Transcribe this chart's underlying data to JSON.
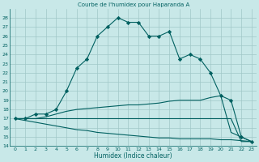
{
  "title": "Courbe de l'humidex pour Haparanda A",
  "xlabel": "Humidex (Indice chaleur)",
  "background_color": "#c8e8e8",
  "grid_color": "#a0c8c8",
  "line_color": "#006060",
  "ylim": [
    14,
    29
  ],
  "xlim": [
    -0.5,
    23.5
  ],
  "yticks": [
    14,
    15,
    16,
    17,
    18,
    19,
    20,
    21,
    22,
    23,
    24,
    25,
    26,
    27,
    28
  ],
  "xticks": [
    0,
    1,
    2,
    3,
    4,
    5,
    6,
    7,
    8,
    9,
    10,
    11,
    12,
    13,
    14,
    15,
    16,
    17,
    18,
    19,
    20,
    21,
    22,
    23
  ],
  "series": [
    {
      "x": [
        0,
        1,
        2,
        3,
        4,
        5,
        6,
        7,
        8,
        9,
        10,
        11,
        12,
        13,
        14,
        15,
        16,
        17,
        18,
        19,
        20,
        21,
        22,
        23
      ],
      "y": [
        17,
        17,
        17.5,
        17.5,
        18,
        20,
        22.5,
        23.5,
        26,
        27,
        28,
        27.5,
        27.5,
        26,
        26,
        26.5,
        23.5,
        24,
        23.5,
        22,
        19.5,
        19,
        15,
        14.5
      ],
      "marker": true
    },
    {
      "x": [
        0,
        1,
        2,
        3,
        4,
        5,
        6,
        7,
        8,
        9,
        10,
        11,
        12,
        13,
        14,
        15,
        16,
        17,
        18,
        19,
        20,
        21,
        22,
        23
      ],
      "y": [
        17,
        17,
        17,
        17.2,
        17.5,
        17.8,
        18.0,
        18.1,
        18.2,
        18.3,
        18.4,
        18.5,
        18.5,
        18.6,
        18.7,
        18.9,
        19.0,
        19.0,
        19.0,
        19.3,
        19.5,
        15.5,
        15.0,
        14.5
      ],
      "marker": false
    },
    {
      "x": [
        0,
        1,
        2,
        3,
        4,
        5,
        6,
        7,
        8,
        9,
        10,
        11,
        12,
        13,
        14,
        15,
        16,
        17,
        18,
        19,
        20,
        21,
        22,
        23
      ],
      "y": [
        17,
        17,
        17,
        17,
        17,
        17,
        17,
        17,
        17,
        17,
        17,
        17,
        17,
        17,
        17,
        17,
        17,
        17,
        17,
        17,
        17,
        17,
        14.5,
        14.5
      ],
      "marker": false
    },
    {
      "x": [
        0,
        1,
        2,
        3,
        4,
        5,
        6,
        7,
        8,
        9,
        10,
        11,
        12,
        13,
        14,
        15,
        16,
        17,
        18,
        19,
        20,
        21,
        22,
        23
      ],
      "y": [
        17,
        16.8,
        16.6,
        16.4,
        16.2,
        16.0,
        15.8,
        15.7,
        15.5,
        15.4,
        15.3,
        15.2,
        15.1,
        15.0,
        14.9,
        14.9,
        14.8,
        14.8,
        14.8,
        14.8,
        14.7,
        14.7,
        14.6,
        14.5
      ],
      "marker": false
    }
  ]
}
